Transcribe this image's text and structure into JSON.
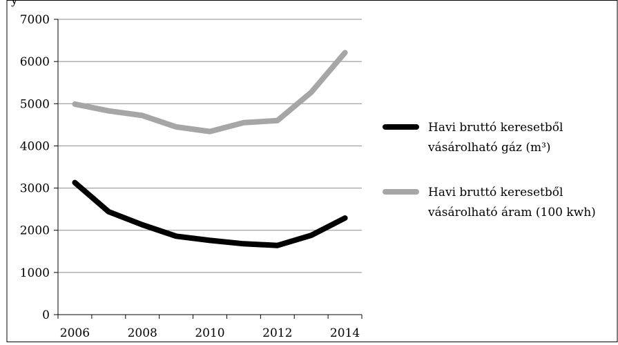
{
  "chart_data": {
    "type": "line",
    "y_unit_label": "y",
    "ylim": [
      0,
      7000
    ],
    "yticks": [
      0,
      1000,
      2000,
      3000,
      4000,
      5000,
      6000,
      7000
    ],
    "xlim": [
      2006,
      2014
    ],
    "xticks": [
      2006,
      2008,
      2010,
      2012,
      2014
    ],
    "grid": "horizontal",
    "legend_position": "right",
    "series": [
      {
        "name_line1": "Havi bruttó keresetből",
        "name_line2": "vásárolható gáz (m³)",
        "color": "#000000",
        "x": [
          2006,
          2007,
          2008,
          2009,
          2010,
          2011,
          2012,
          2013,
          2014
        ],
        "y": [
          3130,
          2440,
          2130,
          1860,
          1760,
          1680,
          1640,
          1880,
          2290
        ]
      },
      {
        "name_line1": "Havi bruttó keresetből",
        "name_line2": "vásárolható áram (100 kwh)",
        "color": "#a6a6a6",
        "x": [
          2006,
          2007,
          2008,
          2009,
          2010,
          2011,
          2012,
          2013,
          2014
        ],
        "y": [
          4990,
          4830,
          4720,
          4450,
          4340,
          4550,
          4600,
          5270,
          6210
        ]
      }
    ]
  }
}
